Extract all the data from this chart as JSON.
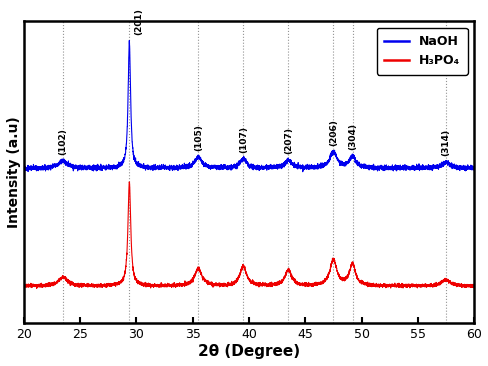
{
  "xlim": [
    20,
    60
  ],
  "xlabel": "2θ (Degree)",
  "ylabel": "Intensity (a.u)",
  "blue_label": "NaOH",
  "red_label": "H₃PO₄",
  "blue_color": "#0000ee",
  "red_color": "#ee0000",
  "background_color": "#ffffff",
  "blue_baseline": 0.54,
  "red_baseline": 0.13,
  "ylim": [
    0,
    1.05
  ],
  "peak_x": [
    23.5,
    29.38,
    35.5,
    39.5,
    43.5,
    47.5,
    49.2,
    57.5
  ],
  "peak_labels": [
    "(102)",
    "(201)",
    "(105)",
    "(107)",
    "(207)",
    "(206)",
    "(304)",
    "(314)"
  ],
  "blue_peak_amps": [
    0.025,
    0.44,
    0.038,
    0.032,
    0.028,
    0.055,
    0.04,
    0.02
  ],
  "blue_peak_widths": [
    0.45,
    0.13,
    0.38,
    0.35,
    0.35,
    0.38,
    0.33,
    0.45
  ],
  "red_peak_amps": [
    0.032,
    0.36,
    0.06,
    0.068,
    0.055,
    0.092,
    0.075,
    0.022
  ],
  "red_peak_widths": [
    0.45,
    0.15,
    0.38,
    0.35,
    0.35,
    0.35,
    0.32,
    0.45
  ],
  "blue_noise": 0.004,
  "red_noise": 0.003,
  "xticks": [
    20,
    25,
    30,
    35,
    40,
    45,
    50,
    55,
    60
  ]
}
